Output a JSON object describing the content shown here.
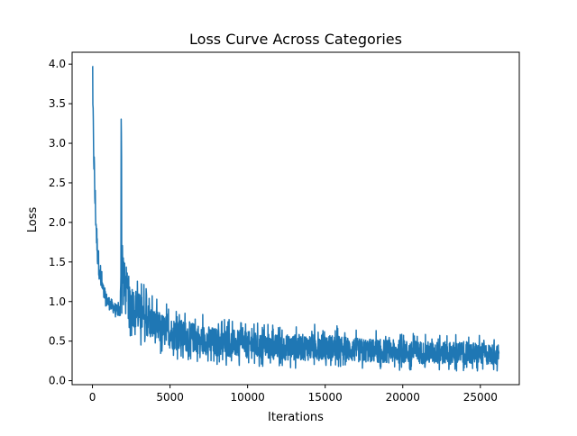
{
  "chart_data": {
    "type": "line",
    "title": "Loss Curve Across Categories",
    "xlabel": "Iterations",
    "ylabel": "Loss",
    "xlim": [
      -1310,
      27510
    ],
    "ylim": [
      -0.05,
      4.15
    ],
    "xticks": [
      0,
      5000,
      10000,
      15000,
      20000,
      25000
    ],
    "xtick_labels": [
      "0",
      "5000",
      "10000",
      "15000",
      "20000",
      "25000"
    ],
    "yticks": [
      0.0,
      0.5,
      1.0,
      1.5,
      2.0,
      2.5,
      3.0,
      3.5,
      4.0
    ],
    "ytick_labels": [
      "0.0",
      "0.5",
      "1.0",
      "1.5",
      "2.0",
      "2.5",
      "3.0",
      "3.5",
      "4.0"
    ],
    "grid": false,
    "legend": "none",
    "series_color": "#1f77b4",
    "series": [
      {
        "x_range": [
          0,
          26200
        ],
        "description_points": {
          "x": [
            0,
            50,
            150,
            300,
            500,
            800,
            1200,
            1600,
            1800,
            1850,
            1900,
            2100,
            2500,
            3000,
            4000,
            5000,
            6000,
            7000,
            8000,
            10000,
            12000,
            15000,
            17000,
            20000,
            22000,
            24000,
            26200
          ],
          "y_mean": [
            3.9,
            3.2,
            2.4,
            1.7,
            1.3,
            1.05,
            0.95,
            0.9,
            0.88,
            2.2,
            1.3,
            1.0,
            0.85,
            0.75,
            0.62,
            0.55,
            0.5,
            0.47,
            0.45,
            0.41,
            0.38,
            0.35,
            0.33,
            0.31,
            0.3,
            0.29,
            0.28
          ],
          "y_high": [
            3.97,
            3.6,
            2.8,
            2.0,
            1.5,
            1.2,
            1.1,
            1.0,
            1.0,
            3.45,
            2.3,
            1.65,
            1.45,
            1.3,
            1.05,
            0.95,
            0.9,
            0.85,
            0.8,
            0.75,
            0.7,
            0.72,
            0.65,
            0.62,
            0.6,
            0.6,
            0.55
          ],
          "y_low": [
            3.5,
            2.8,
            2.0,
            1.4,
            1.1,
            0.9,
            0.82,
            0.78,
            0.75,
            1.0,
            0.75,
            0.65,
            0.55,
            0.45,
            0.35,
            0.28,
            0.25,
            0.22,
            0.2,
            0.18,
            0.16,
            0.15,
            0.14,
            0.13,
            0.12,
            0.12,
            0.12
          ]
        }
      }
    ]
  }
}
